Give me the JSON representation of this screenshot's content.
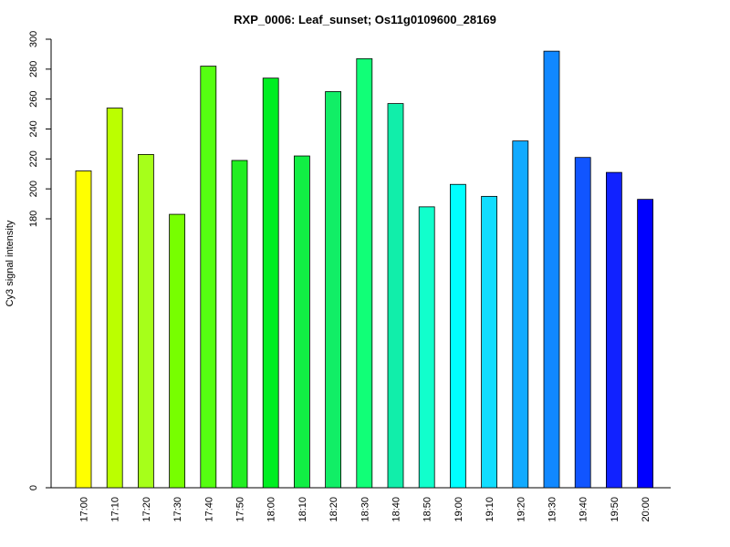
{
  "chart_data": {
    "type": "bar",
    "title": "RXP_0006: Leaf_sunset; Os11g0109600_28169",
    "xlabel": "",
    "ylabel": "Cy3 signal intensity",
    "categories": [
      "17:00",
      "17:10",
      "17:20",
      "17:30",
      "17:40",
      "17:50",
      "18:00",
      "18:10",
      "18:20",
      "18:30",
      "18:40",
      "18:50",
      "19:00",
      "19:10",
      "19:20",
      "19:30",
      "19:40",
      "19:50",
      "20:00"
    ],
    "values": [
      212,
      254,
      223,
      183,
      282,
      219,
      274,
      222,
      265,
      287,
      257,
      188,
      203,
      195,
      232,
      292,
      221,
      211,
      193
    ],
    "colors": [
      "#ffff00",
      "#bbff00",
      "#a6ff1a",
      "#77ff00",
      "#55ff11",
      "#22ee22",
      "#00ee22",
      "#11ee44",
      "#11ee66",
      "#11ff77",
      "#11eeaa",
      "#11ffcc",
      "#00ffff",
      "#11ddff",
      "#11aaff",
      "#1188ff",
      "#1155ff",
      "#1122ff",
      "#0000ff"
    ],
    "yticks": [
      0,
      180,
      200,
      220,
      240,
      260,
      280,
      300
    ],
    "ylim": [
      0,
      300
    ],
    "axis_break": true
  }
}
